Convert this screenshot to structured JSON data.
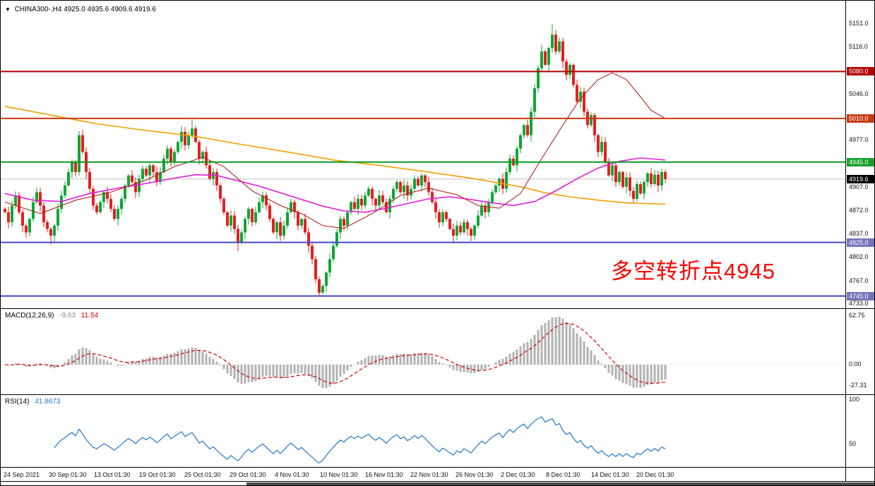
{
  "window": {
    "symbol_line": {
      "symbol": "CHINA300-,H4",
      "ohlc": "4925.0 4935.6 4909.6 4919.6"
    }
  },
  "annotation": {
    "text": "多空转折点4945",
    "color": "#ff0000"
  },
  "macd_panel": {
    "name": "MACD(12,26,9)",
    "value_main": "-9.63",
    "value_signal": "11.54",
    "axis_labels": [
      "62.75",
      "0.00",
      "-27.31"
    ]
  },
  "rsi_panel": {
    "name": "RSI(14)",
    "value": "41.8673",
    "axis_labels": [
      "100",
      "50"
    ]
  },
  "chart_data": {
    "type": "candlestick",
    "symbol": "CHINA300-,H4",
    "timeframe": "H4",
    "ohlc_display": {
      "open": 4925.0,
      "high": 4935.6,
      "low": 4909.6,
      "close": 4919.6
    },
    "current_price": 4919.6,
    "current_price_badge": {
      "label": "4919.6",
      "color": "#000000"
    },
    "price_range": [
      4733.0,
      5151.0
    ],
    "price_axis_ticks": [
      5151.0,
      5116.0,
      5046.0,
      4977.0,
      4907.0,
      4872.0,
      4837.0,
      4802.0,
      4767.0,
      4733.0
    ],
    "x_labels": [
      "24 Sep 2021",
      "30 Sep 01:30",
      "13 Oct 01:30",
      "19 Oct 01:30",
      "25 Oct 01:30",
      "29 Oct 01:30",
      "4 Nov 01:30",
      "10 Nov 01:30",
      "16 Nov 01:30",
      "22 Nov 01:30",
      "26 Nov 01:30",
      "2 Dec 01:30",
      "8 Dec 01:30",
      "14 Dec 01:30",
      "20 Dec 01:30"
    ],
    "levels": [
      {
        "price": 5080.0,
        "label": "5080.0",
        "line_color": "#b40000",
        "badge_color": "#b40000"
      },
      {
        "price": 5010.0,
        "label": "5010.0",
        "line_color": "#c83a10",
        "badge_color": "#c83a10"
      },
      {
        "price": 4945.0,
        "label": "4945.0",
        "line_color": "#0a9b20",
        "badge_color": "#14a12b"
      },
      {
        "price": 4825.0,
        "label": "4825.0",
        "line_color": "#4646c6",
        "badge_color": "#7474bb"
      },
      {
        "price": 4745.0,
        "label": "4745.0",
        "line_color": "#4646c6",
        "badge_color": "#7474bb"
      }
    ],
    "candles": {
      "up_color": "#10a735",
      "down_color": "#e51f1f",
      "first_open": 4875,
      "closes": [
        4870,
        4855,
        4880,
        4895,
        4870,
        4850,
        4840,
        4860,
        4885,
        4900,
        4880,
        4855,
        4845,
        4835,
        4850,
        4875,
        4895,
        4910,
        4930,
        4945,
        4930,
        4985,
        4960,
        4930,
        4905,
        4880,
        4870,
        4885,
        4900,
        4890,
        4875,
        4860,
        4875,
        4890,
        4910,
        4925,
        4915,
        4900,
        4920,
        4935,
        4925,
        4940,
        4930,
        4915,
        4930,
        4950,
        4965,
        4945,
        4960,
        4975,
        4990,
        4970,
        4985,
        4995,
        4975,
        4950,
        4960,
        4940,
        4920,
        4930,
        4910,
        4890,
        4870,
        4850,
        4865,
        4845,
        4825,
        4840,
        4860,
        4875,
        4855,
        4870,
        4885,
        4895,
        4880,
        4860,
        4840,
        4855,
        4835,
        4850,
        4870,
        4885,
        4870,
        4850,
        4860,
        4840,
        4820,
        4800,
        4770,
        4750,
        4760,
        4780,
        4800,
        4820,
        4840,
        4860,
        4850,
        4870,
        4885,
        4875,
        4890,
        4880,
        4895,
        4905,
        4890,
        4880,
        4895,
        4885,
        4870,
        4890,
        4905,
        4915,
        4900,
        4910,
        4895,
        4905,
        4920,
        4910,
        4925,
        4915,
        4900,
        4885,
        4870,
        4855,
        4870,
        4860,
        4845,
        4835,
        4850,
        4840,
        4855,
        4845,
        4835,
        4850,
        4865,
        4880,
        4870,
        4885,
        4900,
        4910,
        4920,
        4905,
        4930,
        4950,
        4940,
        4965,
        4985,
        5000,
        4985,
        5020,
        5055,
        5085,
        5110,
        5090,
        5115,
        5135,
        5110,
        5125,
        5095,
        5075,
        5090,
        5060,
        5035,
        5050,
        5020,
        5000,
        5015,
        4985,
        4960,
        4975,
        4945,
        4925,
        4940,
        4915,
        4930,
        4908,
        4922,
        4902,
        4890,
        4912,
        4898,
        4915,
        4928,
        4912,
        4926,
        4910,
        4930,
        4919.6
      ],
      "extremes": {
        "13": {
          "low": 4822
        },
        "21": {
          "high": 4991
        },
        "53": {
          "high": 5008
        },
        "66": {
          "low": 4812
        },
        "89": {
          "low": 4745
        },
        "152": {
          "high": 5120
        },
        "155": {
          "high": 5151
        }
      }
    },
    "ma_lines": [
      {
        "name": "slow-ma-orange",
        "color": "#f0a000",
        "width": 1.6,
        "points": [
          [
            0,
            5028
          ],
          [
            13,
            5015
          ],
          [
            26,
            5002
          ],
          [
            40,
            4992
          ],
          [
            53,
            4984
          ],
          [
            66,
            4972
          ],
          [
            80,
            4960
          ],
          [
            93,
            4948
          ],
          [
            106,
            4940
          ],
          [
            120,
            4930
          ],
          [
            133,
            4920
          ],
          [
            146,
            4908
          ],
          [
            153,
            4899
          ],
          [
            160,
            4893
          ],
          [
            168,
            4888
          ],
          [
            176,
            4884
          ],
          [
            187,
            4882
          ]
        ]
      },
      {
        "name": "mid-ma-magenta",
        "color": "#e020d8",
        "width": 1.6,
        "points": [
          [
            0,
            4898
          ],
          [
            8,
            4888
          ],
          [
            16,
            4886
          ],
          [
            24,
            4898
          ],
          [
            32,
            4906
          ],
          [
            40,
            4913
          ],
          [
            48,
            4921
          ],
          [
            54,
            4926
          ],
          [
            60,
            4925
          ],
          [
            66,
            4917
          ],
          [
            72,
            4909
          ],
          [
            78,
            4899
          ],
          [
            84,
            4889
          ],
          [
            90,
            4879
          ],
          [
            96,
            4872
          ],
          [
            102,
            4870
          ],
          [
            108,
            4876
          ],
          [
            114,
            4883
          ],
          [
            120,
            4890
          ],
          [
            126,
            4893
          ],
          [
            132,
            4889
          ],
          [
            138,
            4884
          ],
          [
            144,
            4880
          ],
          [
            150,
            4886
          ],
          [
            156,
            4902
          ],
          [
            162,
            4920
          ],
          [
            168,
            4936
          ],
          [
            174,
            4946
          ],
          [
            180,
            4951
          ],
          [
            187,
            4948
          ]
        ]
      },
      {
        "name": "fast-ma-red",
        "color": "#b22222",
        "width": 1.1,
        "points": [
          [
            0,
            4885
          ],
          [
            10,
            4868
          ],
          [
            20,
            4888
          ],
          [
            30,
            4900
          ],
          [
            40,
            4918
          ],
          [
            48,
            4938
          ],
          [
            56,
            4952
          ],
          [
            62,
            4938
          ],
          [
            70,
            4902
          ],
          [
            78,
            4880
          ],
          [
            84,
            4868
          ],
          [
            90,
            4850
          ],
          [
            96,
            4846
          ],
          [
            104,
            4868
          ],
          [
            112,
            4895
          ],
          [
            120,
            4906
          ],
          [
            128,
            4896
          ],
          [
            134,
            4880
          ],
          [
            140,
            4876
          ],
          [
            146,
            4898
          ],
          [
            152,
            4950
          ],
          [
            158,
            5000
          ],
          [
            163,
            5040
          ],
          [
            168,
            5068
          ],
          [
            172,
            5078
          ],
          [
            176,
            5068
          ],
          [
            180,
            5042
          ],
          [
            183,
            5022
          ],
          [
            187,
            5010
          ]
        ]
      }
    ],
    "macd": {
      "params": [
        12,
        26,
        9
      ],
      "histogram_color": "#b2b2b2",
      "signal_color": "#d40000",
      "axis": [
        62.75,
        0,
        -27.31
      ],
      "display_main": -9.63,
      "display_signal": 11.54
    },
    "rsi": {
      "period": 14,
      "color": "#2277cc",
      "axis": [
        100,
        50
      ],
      "last_value": 41.8673
    }
  }
}
